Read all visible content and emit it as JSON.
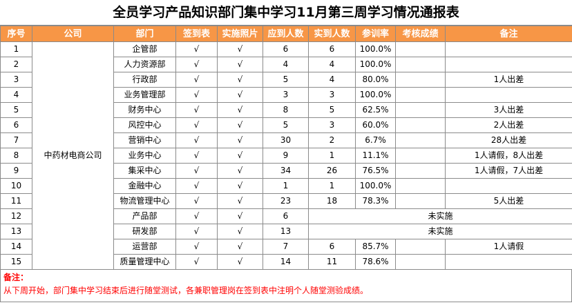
{
  "title": "全员学习产品知识部门集中学习11月第三周学习情况通报表",
  "header": [
    "序号",
    "公司",
    "部门",
    "签到表",
    "实施照片",
    "应到人数",
    "实到人数",
    "参训率",
    "考核成绩",
    "备注"
  ],
  "company": "中药材电商公司",
  "rows": [
    {
      "no": "1",
      "dept": "企管部",
      "sign": "√",
      "photo": "√",
      "expected": "6",
      "actual": "6",
      "rate": "100.0%",
      "score": "",
      "remark": ""
    },
    {
      "no": "2",
      "dept": "人力资源部",
      "sign": "√",
      "photo": "√",
      "expected": "4",
      "actual": "4",
      "rate": "100.0%",
      "score": "",
      "remark": ""
    },
    {
      "no": "3",
      "dept": "行政部",
      "sign": "√",
      "photo": "√",
      "expected": "5",
      "actual": "4",
      "rate": "80.0%",
      "score": "",
      "remark": "1人出差"
    },
    {
      "no": "4",
      "dept": "业务管理部",
      "sign": "√",
      "photo": "√",
      "expected": "3",
      "actual": "3",
      "rate": "100.0%",
      "score": "",
      "remark": ""
    },
    {
      "no": "5",
      "dept": "财务中心",
      "sign": "√",
      "photo": "√",
      "expected": "8",
      "actual": "5",
      "rate": "62.5%",
      "score": "",
      "remark": "3人出差"
    },
    {
      "no": "6",
      "dept": "风控中心",
      "sign": "√",
      "photo": "√",
      "expected": "5",
      "actual": "3",
      "rate": "60.0%",
      "score": "",
      "remark": "2人出差"
    },
    {
      "no": "7",
      "dept": "营销中心",
      "sign": "√",
      "photo": "√",
      "expected": "30",
      "actual": "2",
      "rate": "6.7%",
      "score": "",
      "remark": "28人出差"
    },
    {
      "no": "8",
      "dept": "业务中心",
      "sign": "√",
      "photo": "√",
      "expected": "9",
      "actual": "1",
      "rate": "11.1%",
      "score": "",
      "remark": "1人请假，8人出差"
    },
    {
      "no": "9",
      "dept": "集采中心",
      "sign": "√",
      "photo": "√",
      "expected": "34",
      "actual": "26",
      "rate": "76.5%",
      "score": "",
      "remark": "1人请假，7人出差"
    },
    {
      "no": "10",
      "dept": "金融中心",
      "sign": "√",
      "photo": "√",
      "expected": "1",
      "actual": "1",
      "rate": "100.0%",
      "score": "",
      "remark": ""
    },
    {
      "no": "11",
      "dept": "物流管理中心",
      "sign": "√",
      "photo": "√",
      "expected": "23",
      "actual": "18",
      "rate": "78.3%",
      "score": "",
      "remark": "5人出差"
    },
    {
      "no": "12",
      "dept": "产品部",
      "sign": "√",
      "photo": "√",
      "expected": "6",
      "merged": "未实施"
    },
    {
      "no": "13",
      "dept": "研发部",
      "sign": "√",
      "photo": "√",
      "expected": "13",
      "merged": "未实施"
    },
    {
      "no": "14",
      "dept": "运营部",
      "sign": "√",
      "photo": "√",
      "expected": "7",
      "actual": "6",
      "rate": "85.7%",
      "score": "",
      "remark": "1人请假"
    },
    {
      "no": "15",
      "dept": "质量管理中心",
      "sign": "√",
      "photo": "√",
      "expected": "14",
      "actual": "11",
      "rate": "78.6%",
      "score": "",
      "remark": ""
    }
  ],
  "footer": {
    "label": "备注：",
    "text": "从下周开始，部门集中学习结束后进行随堂测试，各兼职管理岗在签到表中注明个人随堂测验成绩。"
  },
  "colors": {
    "header_bg": "#f79646",
    "header_text": "#ffffff",
    "note_text": "#ff0000",
    "grid": "#8a8a8a"
  }
}
